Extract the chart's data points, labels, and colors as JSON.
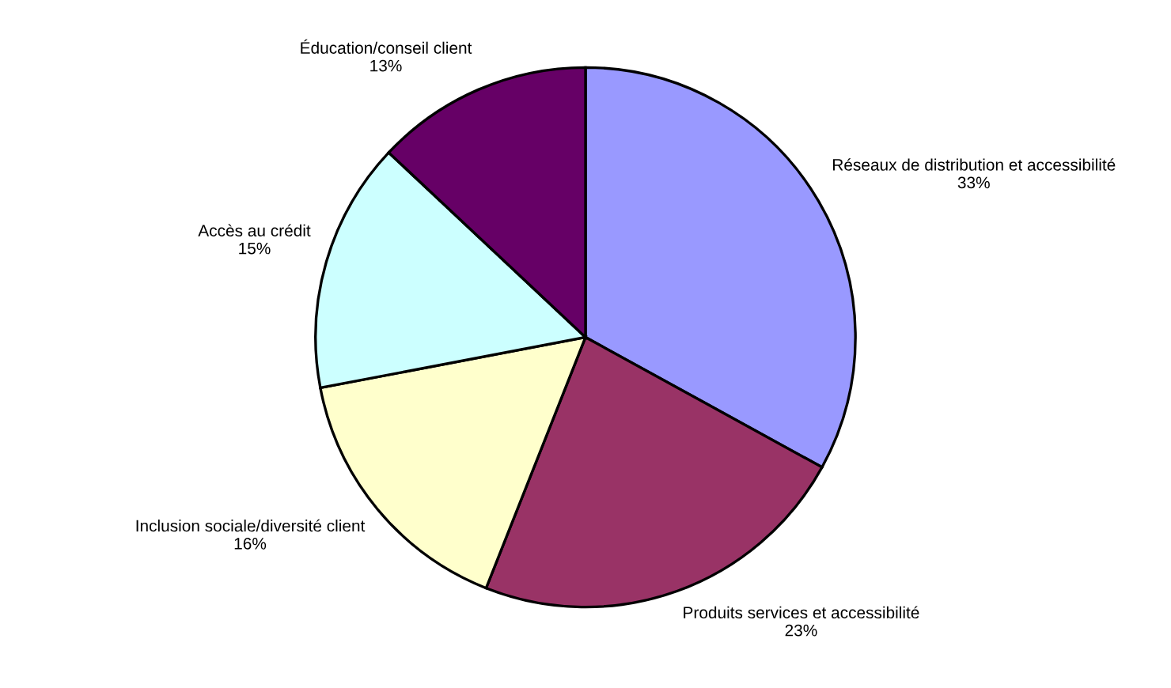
{
  "chart_data": {
    "type": "pie",
    "categories": [
      "Réseaux de distribution et accessibilité",
      "Produits services et accessibilité",
      "Inclusion sociale/diversité client",
      "Accès au crédit",
      "Éducation/conseil client"
    ],
    "values": [
      33,
      23,
      16,
      15,
      13
    ],
    "colors": [
      "#9999ff",
      "#993366",
      "#ffffcc",
      "#ccffff",
      "#660066"
    ],
    "value_labels": [
      "33%",
      "23%",
      "16%",
      "15%",
      "13%"
    ],
    "legend": false
  }
}
